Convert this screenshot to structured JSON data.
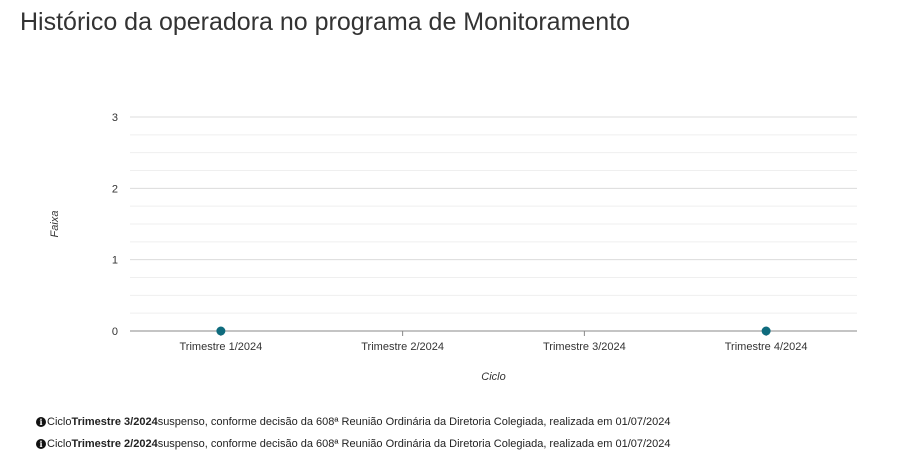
{
  "page": {
    "title": "Histórico da operadora no programa de Monitoramento"
  },
  "chart_data": {
    "type": "scatter",
    "title": "",
    "xlabel": "Ciclo",
    "ylabel": "Faixa",
    "categories": [
      "Trimestre 1/2024",
      "Trimestre 2/2024",
      "Trimestre 3/2024",
      "Trimestre 4/2024"
    ],
    "series": [
      {
        "points": [
          {
            "x": "Trimestre 1/2024",
            "y": 0
          },
          {
            "x": "Trimestre 4/2024",
            "y": 0
          }
        ],
        "color": "#0e6b7d"
      }
    ],
    "ylim": [
      0,
      3
    ],
    "yticks": [
      0,
      1,
      2,
      3
    ],
    "grid": true,
    "legend": "none"
  },
  "notes": [
    {
      "icon": "info-icon",
      "prefix": "Ciclo ",
      "cycle": "Trimestre 3/2024",
      "text": " suspenso, conforme decisão da 608ª Reunião Ordinária da Diretoria Colegiada, realizada em 01/07/2024"
    },
    {
      "icon": "info-icon",
      "prefix": "Ciclo ",
      "cycle": "Trimestre 2/2024",
      "text": " suspenso, conforme decisão da 608ª Reunião Ordinária da Diretoria Colegiada, realizada em 01/07/2024"
    }
  ]
}
